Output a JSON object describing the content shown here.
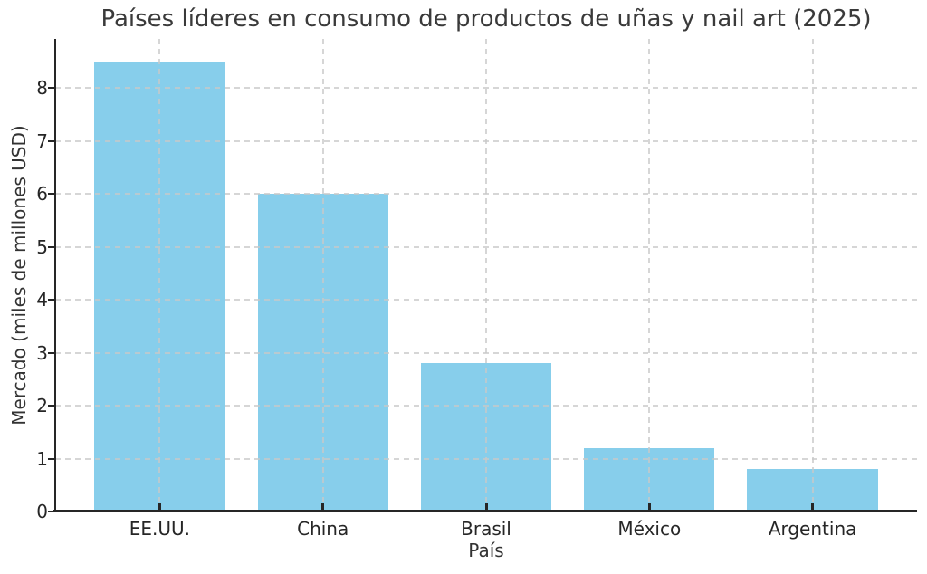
{
  "chart_data": {
    "type": "bar",
    "title": "Países líderes en consumo de productos de uñas y nail art (2025)",
    "xlabel": "País",
    "ylabel": "Mercado (miles de millones USD)",
    "categories": [
      "EE.UU.",
      "China",
      "Brasil",
      "México",
      "Argentina"
    ],
    "values": [
      8.5,
      6.0,
      2.8,
      1.2,
      0.8
    ],
    "yticks": [
      0,
      1,
      2,
      3,
      4,
      5,
      6,
      7,
      8
    ],
    "ylim": [
      0,
      8.93
    ],
    "grid": true,
    "grid_style": "dashed",
    "legend": "none",
    "bar_color": "#87CEEB",
    "grid_color": "#c8c8c8",
    "axis_color": "#262626",
    "title_color": "#3a3a3a",
    "text_color": "#333333",
    "background": "#ffffff"
  }
}
